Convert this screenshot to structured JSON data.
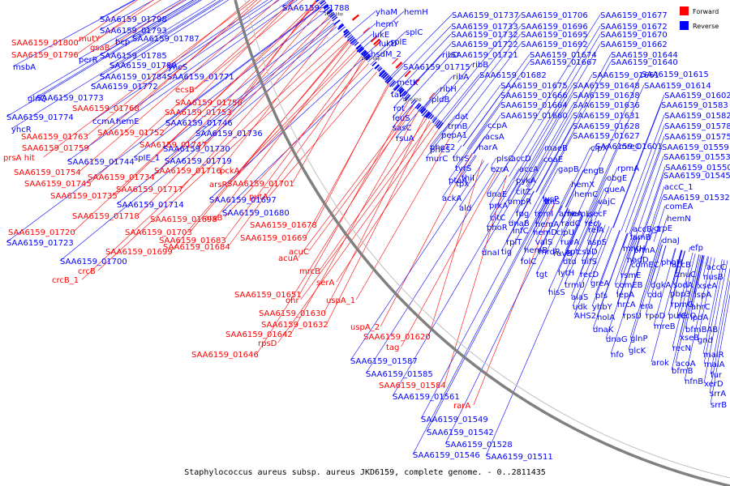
{
  "caption": "Staphylococcus aureus subsp. aureus JKD6159, complete genome. - 0..2811435",
  "legend": [
    {
      "label": "Forward",
      "color": "#ff0000"
    },
    {
      "label": "Reverse",
      "color": "#0000ff"
    }
  ],
  "colors": {
    "forward": "#ff0000",
    "reverse": "#0000ff",
    "backbone": "#808080"
  },
  "ticks": [
    "1950 kbp",
    "1900 kbp",
    "1850 kbp",
    "1800 kbp",
    "1750 kbp",
    "1700 kbp",
    "1650 kbp",
    "1600 kbp"
  ],
  "labels": [
    {
      "t": "SAA6159_01788",
      "s": "r"
    },
    {
      "t": "yhaM",
      "s": "r"
    },
    {
      "t": "hemH",
      "s": "r"
    },
    {
      "t": "SAA6159_01798",
      "s": "r"
    },
    {
      "t": "hemY",
      "s": "r"
    },
    {
      "t": "SAA6159_01737",
      "s": "r"
    },
    {
      "t": "SAA6159_01706",
      "s": "r"
    },
    {
      "t": "SAA6159_01677",
      "s": "r"
    },
    {
      "t": "SAA6159_01793",
      "s": "r"
    },
    {
      "t": "lukE",
      "s": "r"
    },
    {
      "t": "splC",
      "s": "r"
    },
    {
      "t": "SAA6159_01733",
      "s": "r"
    },
    {
      "t": "SAA6159_01696",
      "s": "r"
    },
    {
      "t": "SAA6159_01672",
      "s": "r"
    },
    {
      "t": "mutY",
      "s": "f"
    },
    {
      "t": "SAA6159_01787",
      "s": "r"
    },
    {
      "t": "bcp",
      "s": "r"
    },
    {
      "t": "lukD",
      "s": "r"
    },
    {
      "t": "splE",
      "s": "r"
    },
    {
      "t": "SAA6159_01732",
      "s": "r"
    },
    {
      "t": "SAA6159_01695",
      "s": "r"
    },
    {
      "t": "SAA6159_01670",
      "s": "r"
    },
    {
      "t": "SAA6159_01800",
      "s": "f"
    },
    {
      "t": "gsaB",
      "s": "f"
    },
    {
      "t": "SAA6159_01722",
      "s": "r"
    },
    {
      "t": "SAA6159_01692",
      "s": "r"
    },
    {
      "t": "SAA6159_01662",
      "s": "r"
    },
    {
      "t": "SAA6159_01796",
      "s": "f"
    },
    {
      "t": "SAA6159_01785",
      "s": "r"
    },
    {
      "t": "hsdM_2",
      "s": "r"
    },
    {
      "t": "ribD",
      "s": "r"
    },
    {
      "t": "SAA6159_01674",
      "s": "r"
    },
    {
      "t": "SAA6159_01644",
      "s": "r"
    },
    {
      "t": "msbA",
      "s": "r"
    },
    {
      "t": "perR",
      "s": "r"
    },
    {
      "t": "SAA6159_01780",
      "s": "r"
    },
    {
      "t": "yhcS",
      "s": "r"
    },
    {
      "t": "SAA6159_01721",
      "s": "r"
    },
    {
      "t": "SAA6159_01667",
      "s": "r"
    },
    {
      "t": "SAA6159_01640",
      "s": "r"
    },
    {
      "t": "SAA6159_01784",
      "s": "r"
    },
    {
      "t": "SAA6159_01771",
      "s": "r"
    },
    {
      "t": "ribB",
      "s": "r"
    },
    {
      "t": "SAA6159_01715",
      "s": "r"
    },
    {
      "t": "SAA6159_01682",
      "s": "r"
    },
    {
      "t": "SAA6159_01661",
      "s": "r"
    },
    {
      "t": "SAA6159_01615",
      "s": "r"
    },
    {
      "t": "ribA",
      "s": "r"
    },
    {
      "t": "metK",
      "s": "r"
    },
    {
      "t": "SAA6159_01772",
      "s": "r"
    },
    {
      "t": "ribH",
      "s": "r"
    },
    {
      "t": "SAA6159_01675",
      "s": "r"
    },
    {
      "t": "SAA6159_01648",
      "s": "r"
    },
    {
      "t": "SAA6159_01614",
      "s": "r"
    },
    {
      "t": "glnQ",
      "s": "r"
    },
    {
      "t": "SAA6159_01773",
      "s": "r"
    },
    {
      "t": "ecsB",
      "s": "f"
    },
    {
      "t": "tal",
      "s": "r"
    },
    {
      "t": "SAA6159_01666",
      "s": "r"
    },
    {
      "t": "SAA6159_01638",
      "s": "r"
    },
    {
      "t": "SAA6159_01602",
      "s": "r"
    },
    {
      "t": "pldB",
      "s": "r"
    },
    {
      "t": "SAA6159_01756",
      "s": "f"
    },
    {
      "t": "SAA6159_01664",
      "s": "r"
    },
    {
      "t": "SAA6159_01636",
      "s": "r"
    },
    {
      "t": "SAA6159_01583",
      "s": "r"
    },
    {
      "t": "rot",
      "s": "r"
    },
    {
      "t": "SAA6159_01768",
      "s": "f"
    },
    {
      "t": "SAA6159_01753",
      "s": "f"
    },
    {
      "t": "SAA6159_01774",
      "s": "r"
    },
    {
      "t": "ccmA",
      "s": "r"
    },
    {
      "t": "hemE",
      "s": "r"
    },
    {
      "t": "SAA6159_01746",
      "s": "r"
    },
    {
      "t": "leuS",
      "s": "r"
    },
    {
      "t": "dat",
      "s": "r"
    },
    {
      "t": "SAA6159_01660",
      "s": "r"
    },
    {
      "t": "SAA6159_01631",
      "s": "r"
    },
    {
      "t": "SAA6159_01582",
      "s": "r"
    },
    {
      "t": "trmB",
      "s": "r"
    },
    {
      "t": "sasC",
      "s": "r"
    },
    {
      "t": "ccpA",
      "s": "r"
    },
    {
      "t": "SAA6159_01628",
      "s": "r"
    },
    {
      "t": "SAA6159_01578",
      "s": "r"
    },
    {
      "t": "yhcR",
      "s": "r"
    },
    {
      "t": "SAA6159_01752",
      "s": "f"
    },
    {
      "t": "SAA6159_01736",
      "s": "r"
    },
    {
      "t": "pepA1",
      "s": "r"
    },
    {
      "t": "acsA",
      "s": "r"
    },
    {
      "t": "SAA6159_01763",
      "s": "f"
    },
    {
      "t": "rsuA",
      "s": "r"
    },
    {
      "t": "SAA6159_01627",
      "s": "r"
    },
    {
      "t": "SAA6159_01575",
      "s": "r"
    },
    {
      "t": "SAA6159_01747",
      "s": "f"
    },
    {
      "t": "pheT2",
      "s": "r"
    },
    {
      "t": "harA",
      "s": "r"
    },
    {
      "t": "prsA hit",
      "s": "f"
    },
    {
      "t": "SAA6159_01759",
      "s": "f"
    },
    {
      "t": "SAA6159_01730",
      "s": "r"
    },
    {
      "t": "maeB",
      "s": "r"
    },
    {
      "t": "clpX",
      "s": "r"
    },
    {
      "t": "mreC",
      "s": "r"
    },
    {
      "t": "SAA6159_01559",
      "s": "r"
    },
    {
      "t": "pheS",
      "s": "r"
    },
    {
      "t": "accD",
      "s": "r"
    },
    {
      "t": "SAA6159_01601",
      "s": "r"
    },
    {
      "t": "murC",
      "s": "r"
    },
    {
      "t": "thrS",
      "s": "r"
    },
    {
      "t": "plsC",
      "s": "r"
    },
    {
      "t": "SAA6159_01553",
      "s": "r"
    },
    {
      "t": "rpmA",
      "s": "r"
    },
    {
      "t": "SAA6159_01744",
      "s": "r"
    },
    {
      "t": "spIE_1",
      "s": "r"
    },
    {
      "t": "coaE",
      "s": "r"
    },
    {
      "t": "SAA6159_01550",
      "s": "r"
    },
    {
      "t": "SAA6159_01754",
      "s": "f"
    },
    {
      "t": "SAA6159_01719",
      "s": "r"
    },
    {
      "t": "tyrS",
      "s": "r"
    },
    {
      "t": "ezrA",
      "s": "r"
    },
    {
      "t": "gapB",
      "s": "r"
    },
    {
      "t": "engB",
      "s": "r"
    },
    {
      "t": "SAA6159_01545",
      "s": "r"
    },
    {
      "t": "SAA6159_01716",
      "s": "f"
    },
    {
      "t": "pckA",
      "s": "f"
    },
    {
      "t": "accA",
      "s": "r"
    },
    {
      "t": "obgE",
      "s": "r"
    },
    {
      "t": "SAA6159_01745",
      "s": "f"
    },
    {
      "t": "SAA6159_01734",
      "s": "f"
    },
    {
      "t": "thiI",
      "s": "r"
    },
    {
      "t": "pykA",
      "s": "r"
    },
    {
      "t": "accC_1",
      "s": "r"
    },
    {
      "t": "SAA6159_01701",
      "s": "f"
    },
    {
      "t": "ptaA",
      "s": "r"
    },
    {
      "t": "tpx",
      "s": "r"
    },
    {
      "t": "hemX",
      "s": "r"
    },
    {
      "t": "queA",
      "s": "r"
    },
    {
      "t": "SAA6159_01717",
      "s": "f"
    },
    {
      "t": "arsR",
      "s": "f"
    },
    {
      "t": "putA",
      "s": "f"
    },
    {
      "t": "SAA6159_01735",
      "s": "f"
    },
    {
      "t": "ackA",
      "s": "r"
    },
    {
      "t": "dnaE",
      "s": "r"
    },
    {
      "t": "citZ",
      "s": "r"
    },
    {
      "t": "hemC",
      "s": "r"
    },
    {
      "t": "SAA6159_01532",
      "s": "r"
    },
    {
      "t": "SAA6159_01714",
      "s": "r"
    },
    {
      "t": "SAA6159_01697",
      "s": "r"
    },
    {
      "t": "ompR",
      "s": "r"
    },
    {
      "t": "thiS",
      "s": "r"
    },
    {
      "t": "vajC",
      "s": "r"
    },
    {
      "t": "SAA6159_01680",
      "s": "r"
    },
    {
      "t": "ald",
      "s": "r"
    },
    {
      "t": "prkA",
      "s": "r"
    },
    {
      "t": "lysP",
      "s": "r"
    },
    {
      "t": "hemL",
      "s": "r"
    },
    {
      "t": "comEA",
      "s": "r"
    },
    {
      "t": "SAA6159_01718",
      "s": "f"
    },
    {
      "t": "SAA6159_01698",
      "s": "f"
    },
    {
      "t": "arsB",
      "s": "f"
    },
    {
      "t": "fpg",
      "s": "r"
    },
    {
      "t": "rpmI",
      "s": "r"
    },
    {
      "t": "amoA",
      "s": "r"
    },
    {
      "t": "secF",
      "s": "r"
    },
    {
      "t": "hemN",
      "s": "r"
    },
    {
      "t": "SAA6159_01678",
      "s": "f"
    },
    {
      "t": "citC",
      "s": "r"
    },
    {
      "t": "dnaB",
      "s": "r"
    },
    {
      "t": "hemA",
      "s": "r"
    },
    {
      "t": "radC",
      "s": "r"
    },
    {
      "t": "recJ",
      "s": "r"
    },
    {
      "t": "SAA6159_01720",
      "s": "f"
    },
    {
      "t": "SAA6159_01703",
      "s": "f"
    },
    {
      "t": "phoR",
      "s": "r"
    },
    {
      "t": "infC",
      "s": "r"
    },
    {
      "t": "hemD",
      "s": "r"
    },
    {
      "t": "clpU",
      "s": "r"
    },
    {
      "t": "relA",
      "s": "r"
    },
    {
      "t": "accB_1",
      "s": "r"
    },
    {
      "t": "grpE",
      "s": "r"
    },
    {
      "t": "SAA6159_01723",
      "s": "r"
    },
    {
      "t": "SAA6159_01683",
      "s": "f"
    },
    {
      "t": "SAA6159_01669",
      "s": "f"
    },
    {
      "t": "rplT",
      "s": "r"
    },
    {
      "t": "valS",
      "s": "r"
    },
    {
      "t": "ruvA",
      "s": "r"
    },
    {
      "t": "aspS",
      "s": "r"
    },
    {
      "t": "lamB",
      "s": "r"
    },
    {
      "t": "dnaJ",
      "s": "r"
    },
    {
      "t": "SAA6159_01699",
      "s": "f"
    },
    {
      "t": "SAA6159_01684",
      "s": "f"
    },
    {
      "t": "mrdR",
      "s": "r"
    },
    {
      "t": "apt",
      "s": "r"
    },
    {
      "t": "mntH",
      "s": "r"
    },
    {
      "t": "prmA",
      "s": "r"
    },
    {
      "t": "efp",
      "s": "r"
    },
    {
      "t": "acuC",
      "s": "f"
    },
    {
      "t": "dnaI",
      "s": "r"
    },
    {
      "t": "tig",
      "s": "r"
    },
    {
      "t": "hemB",
      "s": "r"
    },
    {
      "t": "ruvB",
      "s": "r"
    },
    {
      "t": "csbD",
      "s": "r"
    },
    {
      "t": "nadD",
      "s": "r"
    },
    {
      "t": "accB",
      "s": "r"
    },
    {
      "t": "SAA6159_01700",
      "s": "r"
    },
    {
      "t": "acuA",
      "s": "f"
    },
    {
      "t": "folC",
      "s": "r"
    },
    {
      "t": "dtd",
      "s": "r"
    },
    {
      "t": "nifS",
      "s": "r"
    },
    {
      "t": "comEC",
      "s": "r"
    },
    {
      "t": "phoH",
      "s": "r"
    },
    {
      "t": "accC",
      "s": "r"
    },
    {
      "t": "crcB",
      "s": "f"
    },
    {
      "t": "mrcB",
      "s": "f"
    },
    {
      "t": "tgt",
      "s": "r"
    },
    {
      "t": "lytH",
      "s": "r"
    },
    {
      "t": "recD",
      "s": "r"
    },
    {
      "t": "rsmE",
      "s": "r"
    },
    {
      "t": "znuC",
      "s": "r"
    },
    {
      "t": "nusB",
      "s": "r"
    },
    {
      "t": "crcB_1",
      "s": "f"
    },
    {
      "t": "serA",
      "s": "f"
    },
    {
      "t": "trmU",
      "s": "r"
    },
    {
      "t": "greA",
      "s": "r"
    },
    {
      "t": "comEB",
      "s": "r"
    },
    {
      "t": "dgkA",
      "s": "r"
    },
    {
      "t": "sodA",
      "s": "r"
    },
    {
      "t": "xseA",
      "s": "r"
    },
    {
      "t": "SAA6159_01651",
      "s": "f"
    },
    {
      "t": "hisS",
      "s": "r"
    },
    {
      "t": "pbp3",
      "s": "r"
    },
    {
      "t": "ispA",
      "s": "r"
    },
    {
      "t": "ohr",
      "s": "f"
    },
    {
      "t": "uspA_1",
      "s": "f"
    },
    {
      "t": "alaS",
      "s": "r"
    },
    {
      "t": "pfs",
      "s": "r"
    },
    {
      "t": "lepA",
      "s": "r"
    },
    {
      "t": "cdd",
      "s": "r"
    },
    {
      "t": "rpmG",
      "s": "r"
    },
    {
      "t": "ahrC",
      "s": "r"
    },
    {
      "t": "SAA6159_01630",
      "s": "f"
    },
    {
      "t": "udk",
      "s": "r"
    },
    {
      "t": "yhbY",
      "s": "r"
    },
    {
      "t": "hrcA",
      "s": "r"
    },
    {
      "t": "era",
      "s": "r"
    },
    {
      "t": "recO",
      "s": "r"
    },
    {
      "t": "SAA6159_01632",
      "s": "f"
    },
    {
      "t": "AHS2",
      "s": "r"
    },
    {
      "t": "holA",
      "s": "r"
    },
    {
      "t": "rpsU",
      "s": "r"
    },
    {
      "t": "rpoD",
      "s": "r"
    },
    {
      "t": "pulG",
      "s": "r"
    },
    {
      "t": "lpdA",
      "s": "r"
    },
    {
      "t": "uspA_2",
      "s": "f"
    },
    {
      "t": "dnaK",
      "s": "r"
    },
    {
      "t": "mreB",
      "s": "r"
    },
    {
      "t": "bfmBAB",
      "s": "r"
    },
    {
      "t": "SAA6159_01642",
      "s": "f"
    },
    {
      "t": "SAA6159_01620",
      "s": "f"
    },
    {
      "t": "dnaG",
      "s": "r"
    },
    {
      "t": "glnP",
      "s": "r"
    },
    {
      "t": "xseB",
      "s": "r"
    },
    {
      "t": "gnd",
      "s": "r"
    },
    {
      "t": "rpsD",
      "s": "f"
    },
    {
      "t": "tag",
      "s": "f"
    },
    {
      "t": "nfo",
      "s": "r"
    },
    {
      "t": "glcK",
      "s": "r"
    },
    {
      "t": "recN",
      "s": "r"
    },
    {
      "t": "SAA6159_01646",
      "s": "f"
    },
    {
      "t": "arok",
      "s": "r"
    },
    {
      "t": "acoA",
      "s": "r"
    },
    {
      "t": "malR",
      "s": "r"
    },
    {
      "t": "SAA6159_01587",
      "s": "r"
    },
    {
      "t": "bfmB",
      "s": "r"
    },
    {
      "t": "malA",
      "s": "r"
    },
    {
      "t": "SAA6159_01585",
      "s": "r"
    },
    {
      "t": "nfnB",
      "s": "r"
    },
    {
      "t": "fur",
      "s": "r"
    },
    {
      "t": "SAA6159_01584",
      "s": "f"
    },
    {
      "t": "xerD",
      "s": "r"
    },
    {
      "t": "SAA6159_01561",
      "s": "r"
    },
    {
      "t": "srrA",
      "s": "r"
    },
    {
      "t": "srrB",
      "s": "r"
    },
    {
      "t": "rarA",
      "s": "f"
    },
    {
      "t": "SAA6159_01549",
      "s": "r"
    },
    {
      "t": "SAA6159_01542",
      "s": "r"
    },
    {
      "t": "SAA6159_01528",
      "s": "r"
    },
    {
      "t": "SAA6159_01546",
      "s": "r"
    },
    {
      "t": "SAA6159_01511",
      "s": "r"
    }
  ]
}
